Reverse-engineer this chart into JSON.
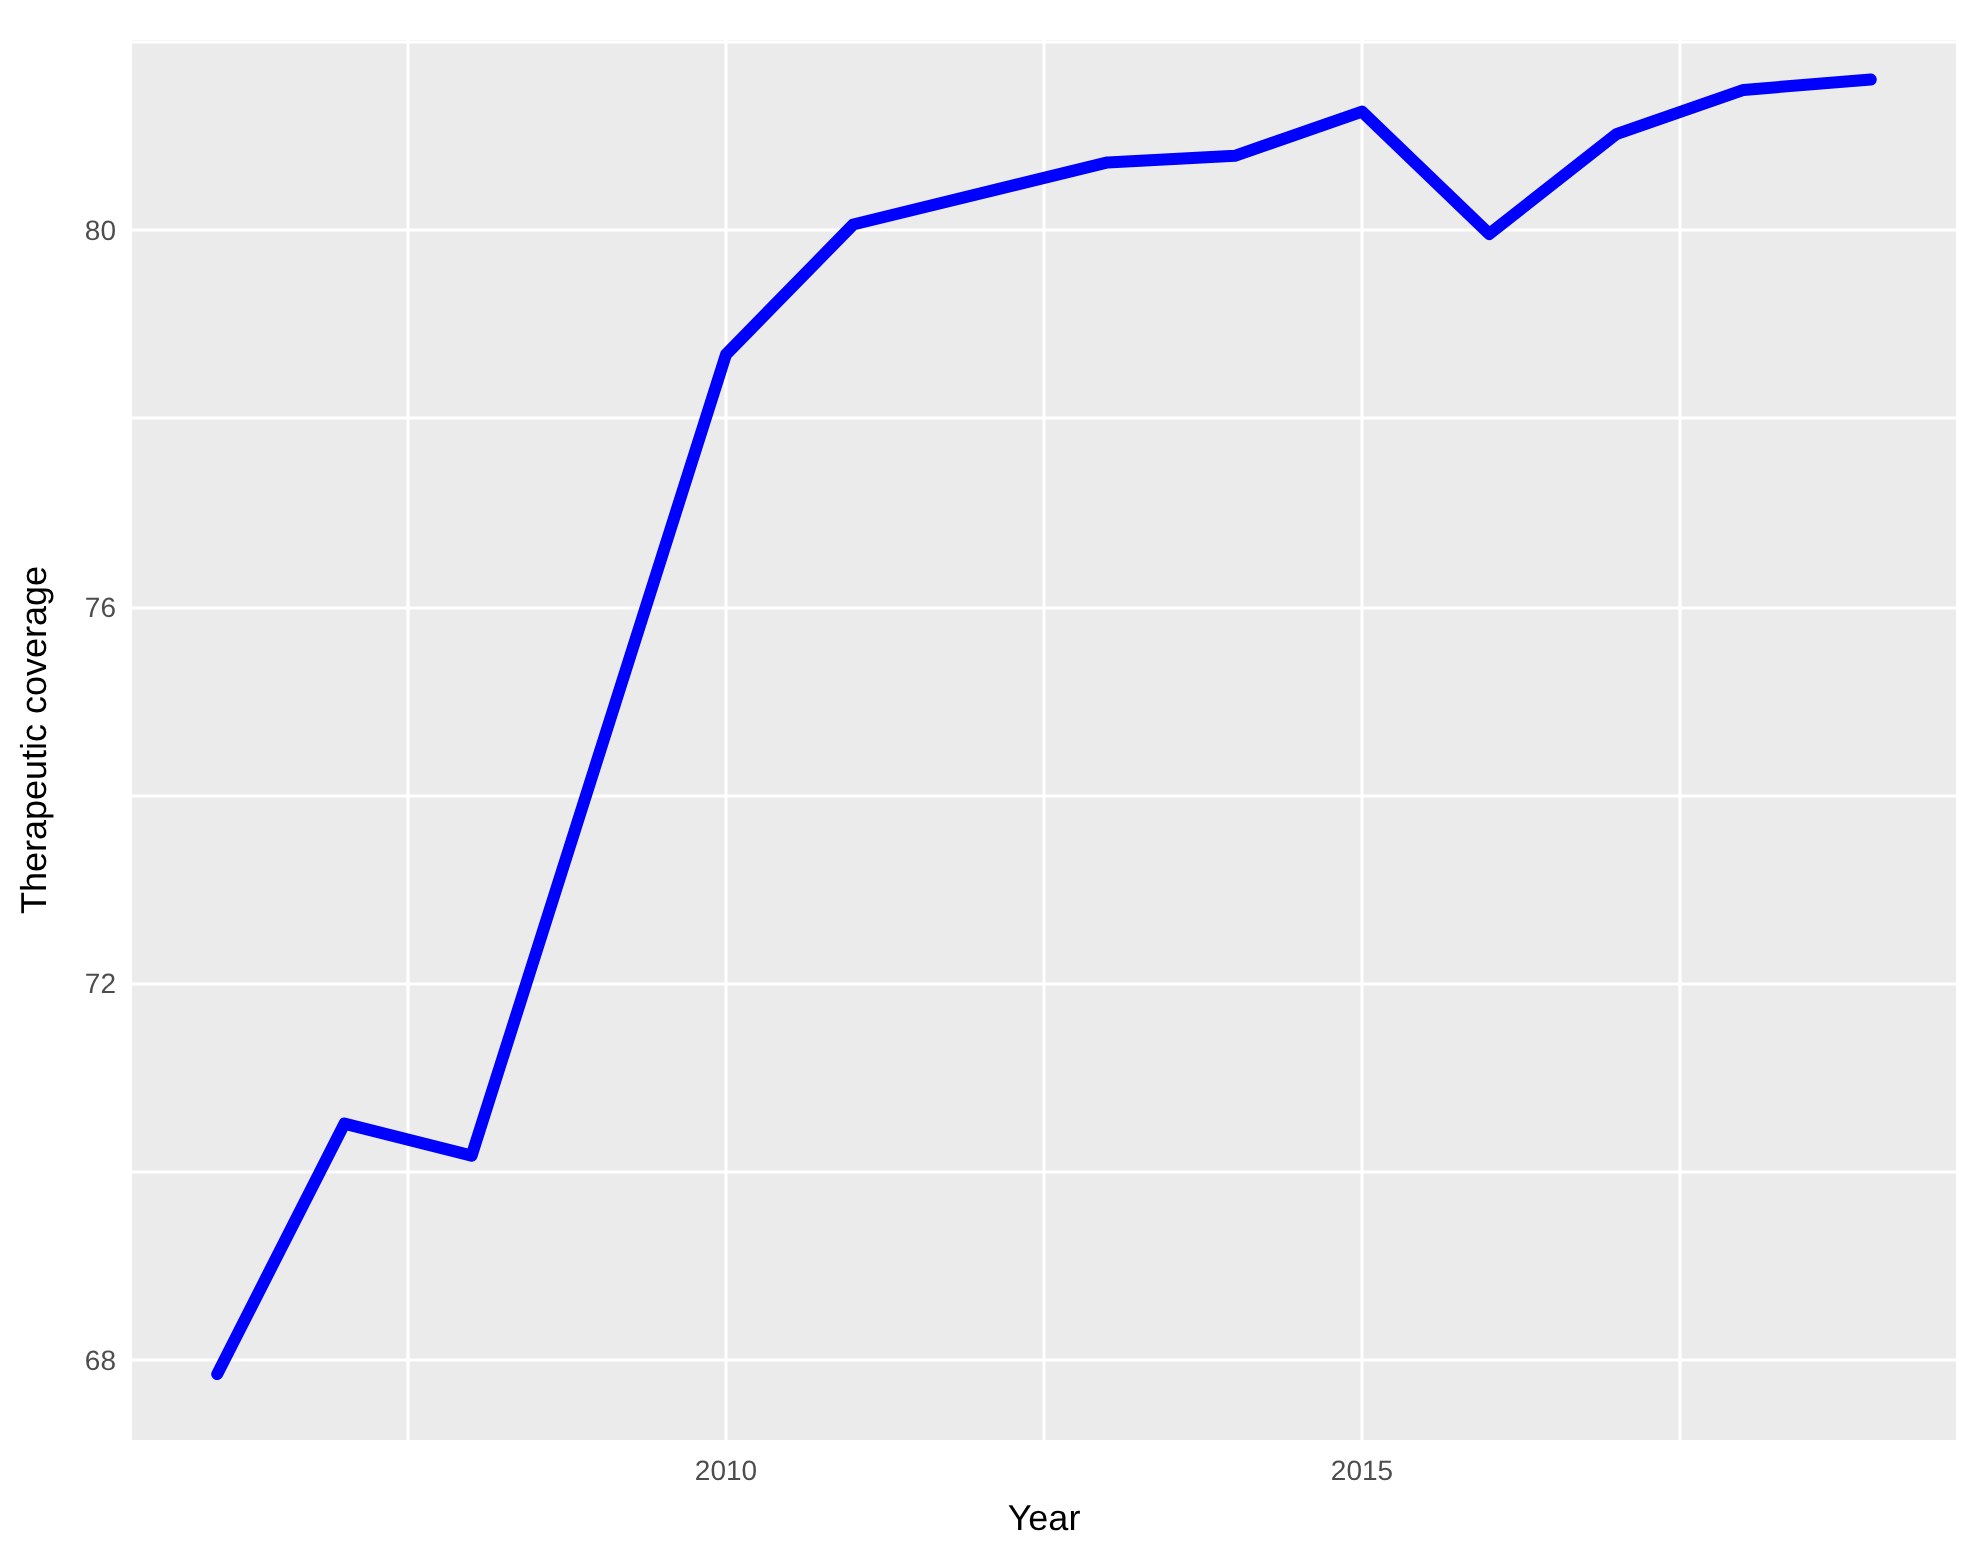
{
  "chart_data": {
    "type": "line",
    "xlabel": "Year",
    "ylabel": "Therapeutic coverage",
    "x": [
      2006,
      2007,
      2008,
      2010,
      2011,
      2013,
      2014,
      2015,
      2016,
      2017,
      2018,
      2019
    ],
    "series": [
      {
        "color": "#0000ff",
        "values": [
          67.85,
          70.51,
          70.17,
          78.68,
          80.06,
          80.72,
          80.79,
          81.26,
          79.96,
          81.02,
          81.49,
          81.6
        ]
      }
    ],
    "xlim": [
      2005.33,
      2019.67
    ],
    "ylim": [
      67.15,
      82.02
    ],
    "xticks": [
      {
        "value": 2007.5,
        "label": null
      },
      2010,
      {
        "value": 2012.5,
        "label": null
      },
      2015,
      {
        "value": 2017.5,
        "label": null
      }
    ],
    "yticks": [
      68,
      {
        "value": 70,
        "label": null
      },
      72,
      {
        "value": 74,
        "label": null
      },
      76,
      {
        "value": 78,
        "label": null
      },
      80,
      {
        "value": 82,
        "label": null
      }
    ],
    "grid": true,
    "marker": "none",
    "line_style": "solid"
  }
}
